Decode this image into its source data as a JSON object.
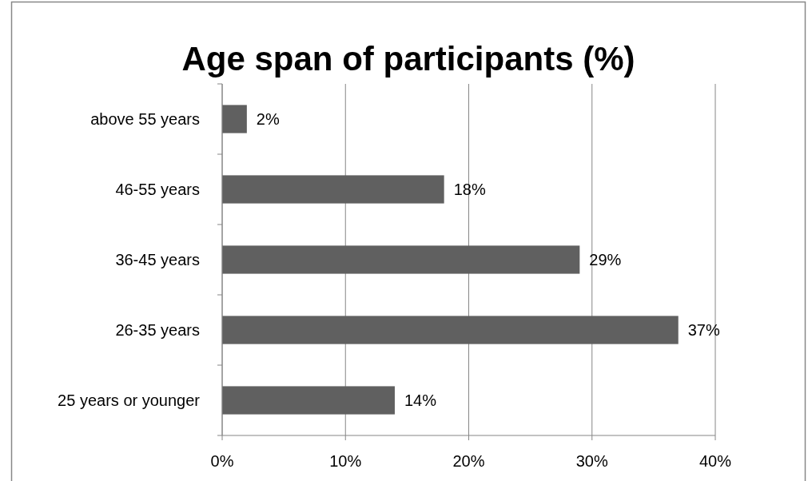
{
  "chart_data": {
    "type": "bar",
    "orientation": "horizontal",
    "title": "Age span of participants (%)",
    "categories": [
      "above 55 years",
      "46-55 years",
      "36-45 years",
      "26-35 years",
      "25 years or younger"
    ],
    "values": [
      2,
      18,
      29,
      37,
      14
    ],
    "color": "#606060",
    "value_labels": [
      "2%",
      "18%",
      "29%",
      "37%",
      "14%"
    ],
    "xlim": [
      0,
      40
    ],
    "xticks": [
      {
        "value": 0,
        "label": "0%"
      },
      {
        "value": 10,
        "label": "10%"
      },
      {
        "value": 20,
        "label": "20%"
      },
      {
        "value": 30,
        "label": "30%"
      },
      {
        "value": 40,
        "label": "40%"
      }
    ],
    "grid": "x"
  }
}
